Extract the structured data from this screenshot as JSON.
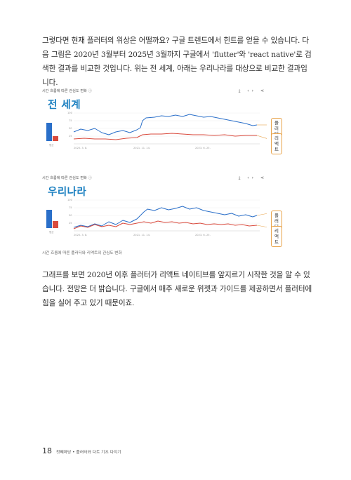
{
  "body": {
    "paragraph1": "그렇다면 현재 플러터의 위상은 어떨까요? 구글 트렌드에서 힌트를 얻을 수 있습니다. 다음 그림은 2020년 3월부터 2025년 3월까지 구글에서 'flutter'와 'react native'로 검색한 결과를 비교한 것입니다. 위는 전 세계, 아래는 우리나라를 대상으로 비교한 결과입니다.",
    "paragraph2": "그래프를 보면 2020년 이후 플러터가 리액트 네이티브를 앞지르기 시작한 것을 알 수 있습니다. 전망은 더 밝습니다. 구글에서 매주 새로운 위젯과 가이드를 제공하면서 플러터에 힘을 실어 주고 있기 때문이죠."
  },
  "figures": [
    {
      "panel_title": "시간 흐름에 따른 관심도 변화  ⓘ",
      "tools": "⤓ ‹› ⋖",
      "region_label": "전 세계",
      "callout_flutter": "플러터",
      "callout_react": "리액트",
      "avg_label": "평균",
      "axis_y_labels": [
        "100",
        "75",
        "50",
        "25"
      ],
      "axis_x_labels": [
        "2020. 3. 8.",
        "2021. 11. 14.",
        "2023. 6. 25."
      ]
    },
    {
      "panel_title": "시간 흐름에 따른 관심도 변화  ⓘ",
      "tools": "⤓ ‹› ⋖",
      "region_label": "우리나라",
      "callout_flutter": "플러터",
      "callout_react": "리액트",
      "avg_label": "평균",
      "axis_y_labels": [
        "100",
        "75",
        "50",
        "25"
      ],
      "axis_x_labels": [
        "2020. 3. 8.",
        "2021. 11. 14.",
        "2023. 6. 25."
      ]
    }
  ],
  "caption": "시간 흐름에 따른 플러터와 리액트의 관심도 변화",
  "footer": {
    "page_number": "18",
    "running_head": "첫째마당 • 플러터와 다트 기초 다지기"
  },
  "colors": {
    "flutter": "#2a6fc9",
    "react": "#d94a3d",
    "region": "#1a7fc0",
    "callout_border": "#e8a34a"
  }
}
